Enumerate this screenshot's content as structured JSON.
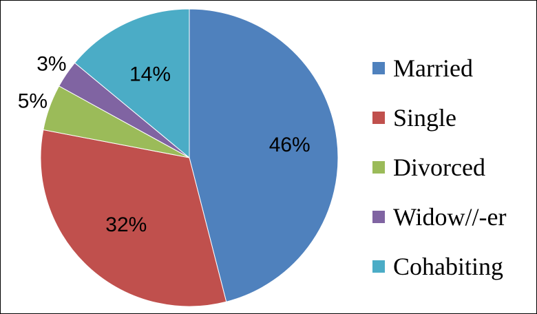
{
  "chart_data": {
    "type": "pie",
    "title": "",
    "legend_position": "right",
    "categories": [
      "Married",
      "Single",
      "Divorced",
      "Widow//-er",
      "Cohabiting"
    ],
    "values": [
      46,
      32,
      5,
      3,
      14
    ],
    "labels": [
      "46%",
      "32%",
      "5%",
      "3%",
      "14%"
    ],
    "colors": [
      "#4F81BD",
      "#C0504D",
      "#9BBB59",
      "#8064A2",
      "#4BACC6"
    ]
  }
}
